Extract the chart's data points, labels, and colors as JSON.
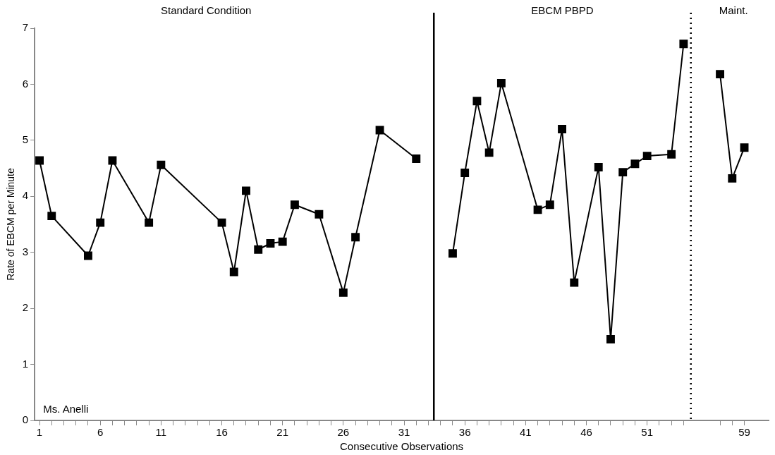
{
  "chart_data": {
    "type": "line",
    "xlabel": "Consecutive Observations",
    "ylabel": "Rate of EBCM per Minute",
    "annotations": [
      "Standard Condition",
      "EBCM PBPD",
      "Maint.",
      "Ms. Anelli"
    ],
    "xlim": [
      0.6,
      61
    ],
    "ylim": [
      0,
      7
    ],
    "yticks": [
      0,
      1,
      2,
      3,
      4,
      5,
      6,
      7
    ],
    "xticks": [
      1,
      {
        "value": 2,
        "label": null
      },
      {
        "value": 3,
        "label": null
      },
      {
        "value": 4,
        "label": null
      },
      {
        "value": 5,
        "label": null
      },
      6,
      {
        "value": 7,
        "label": null
      },
      {
        "value": 8,
        "label": null
      },
      {
        "value": 9,
        "label": null
      },
      {
        "value": 10,
        "label": null
      },
      11,
      {
        "value": 12,
        "label": null
      },
      {
        "value": 13,
        "label": null
      },
      {
        "value": 14,
        "label": null
      },
      {
        "value": 15,
        "label": null
      },
      16,
      {
        "value": 17,
        "label": null
      },
      {
        "value": 18,
        "label": null
      },
      {
        "value": 19,
        "label": null
      },
      {
        "value": 20,
        "label": null
      },
      21,
      {
        "value": 22,
        "label": null
      },
      {
        "value": 23,
        "label": null
      },
      {
        "value": 24,
        "label": null
      },
      {
        "value": 25,
        "label": null
      },
      26,
      {
        "value": 27,
        "label": null
      },
      {
        "value": 28,
        "label": null
      },
      {
        "value": 29,
        "label": null
      },
      {
        "value": 30,
        "label": null
      },
      31,
      {
        "value": 32,
        "label": null
      },
      {
        "value": 33,
        "label": null
      },
      {
        "value": 34,
        "label": null
      },
      {
        "value": 35,
        "label": null
      },
      36,
      {
        "value": 37,
        "label": null
      },
      {
        "value": 38,
        "label": null
      },
      {
        "value": 39,
        "label": null
      },
      {
        "value": 40,
        "label": null
      },
      41,
      {
        "value": 42,
        "label": null
      },
      {
        "value": 43,
        "label": null
      },
      {
        "value": 44,
        "label": null
      },
      {
        "value": 45,
        "label": null
      },
      46,
      {
        "value": 47,
        "label": null
      },
      {
        "value": 48,
        "label": null
      },
      {
        "value": 49,
        "label": null
      },
      {
        "value": 50,
        "label": null
      },
      51,
      {
        "value": 52,
        "label": null
      },
      {
        "value": 53,
        "label": null
      },
      {
        "value": 54,
        "label": null
      },
      {
        "value": 57,
        "label": null
      },
      {
        "value": 58,
        "label": null
      },
      59
    ],
    "ref_lines": [
      {
        "axis": "x",
        "value": 33.45,
        "line_style": "solid",
        "color": "#000000"
      },
      {
        "axis": "x",
        "value": 54.6,
        "line_style": "dotted",
        "color": "#000000"
      }
    ],
    "marker": "square",
    "line_style": "solid",
    "grid": false,
    "legend": false,
    "series": [
      {
        "color": "#000000",
        "x": [
          1,
          2,
          5,
          6,
          7,
          10,
          11,
          16,
          17,
          18,
          19,
          20,
          21,
          22,
          24,
          26,
          27,
          29,
          32
        ],
        "values": [
          4.64,
          3.65,
          2.94,
          3.53,
          4.64,
          3.53,
          4.56,
          3.53,
          2.65,
          4.1,
          3.05,
          3.16,
          3.19,
          3.85,
          3.68,
          2.28,
          3.27,
          5.18,
          4.67
        ]
      },
      {
        "color": "#000000",
        "x": [
          35,
          36,
          37,
          38,
          39,
          42,
          43,
          44,
          45,
          47,
          48,
          49,
          50,
          51,
          53,
          54
        ],
        "values": [
          2.98,
          4.42,
          5.7,
          4.78,
          6.02,
          3.76,
          3.85,
          5.2,
          2.46,
          4.52,
          1.45,
          4.43,
          4.58,
          4.72,
          4.75,
          6.72
        ]
      },
      {
        "color": "#000000",
        "x": [
          57,
          58,
          59
        ],
        "values": [
          6.18,
          4.32,
          4.87
        ]
      }
    ]
  }
}
